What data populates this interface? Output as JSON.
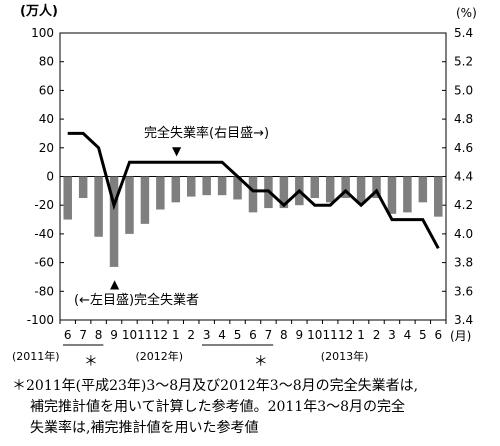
{
  "chart_data": {
    "type": "bar",
    "left_unit": "(万人)",
    "right_unit": "(%)",
    "month_unit": "(月)",
    "left_ticks": [
      "100",
      "80",
      "60",
      "40",
      "20",
      "0",
      "-20",
      "-40",
      "-60",
      "-80",
      "-100"
    ],
    "right_ticks": [
      "5.4",
      "5.2",
      "5.0",
      "4.8",
      "4.6",
      "4.4",
      "4.2",
      "4.0",
      "3.8",
      "3.6",
      "3.4"
    ],
    "ylim_left": [
      -100,
      100
    ],
    "ylim_right": [
      3.4,
      5.4
    ],
    "categories": [
      "6",
      "7",
      "8",
      "9",
      "10",
      "11",
      "12",
      "1",
      "2",
      "3",
      "4",
      "5",
      "6",
      "7",
      "8",
      "9",
      "10",
      "11",
      "12",
      "1",
      "2",
      "3",
      "4",
      "5",
      "6"
    ],
    "year_labels": [
      {
        "text": "(2011年)",
        "index": 0
      },
      {
        "text": "(2012年)",
        "index": 8
      },
      {
        "text": "(2013年)",
        "index": 20
      }
    ],
    "asterisk_indices": [
      1.5,
      12.5
    ],
    "asterisk_char": "＊",
    "bracket_groups": [
      [
        0,
        2
      ],
      [
        9,
        13
      ]
    ],
    "series": [
      {
        "name": "(←左目盛)完全失業者",
        "type": "bar",
        "axis": "left",
        "color": "#7f7f7f",
        "values": [
          -30,
          -15,
          -42,
          -63,
          -40,
          -33,
          -23,
          -18,
          -14,
          -13,
          -13,
          -16,
          -25,
          -22,
          -22,
          -20,
          -15,
          -18,
          -15,
          -19,
          -15,
          -26,
          -25,
          -18,
          -28
        ]
      },
      {
        "name": "完全失業率(右目盛→)",
        "type": "line",
        "axis": "right",
        "color": "#000000",
        "values": [
          4.7,
          4.7,
          4.6,
          4.2,
          4.5,
          4.5,
          4.5,
          4.5,
          4.5,
          4.5,
          4.5,
          4.4,
          4.3,
          4.3,
          4.2,
          4.3,
          4.2,
          4.2,
          4.3,
          4.2,
          4.3,
          4.1,
          4.1,
          4.1,
          3.9
        ]
      }
    ],
    "annotations": {
      "rate_label": "完全失業率(右目盛→)",
      "rate_marker": "▼",
      "unemployed_label": "(←左目盛)完全失業者",
      "unemployed_marker": "▲"
    }
  },
  "footnote": {
    "line1": "＊2011年(平成23年)3～8月及び2012年3～8月の完全失業者は,",
    "line2": "補完推計値を用いて計算した参考値。2011年3～8月の完全",
    "line3": "失業率は,補完推計値を用いた参考値"
  }
}
